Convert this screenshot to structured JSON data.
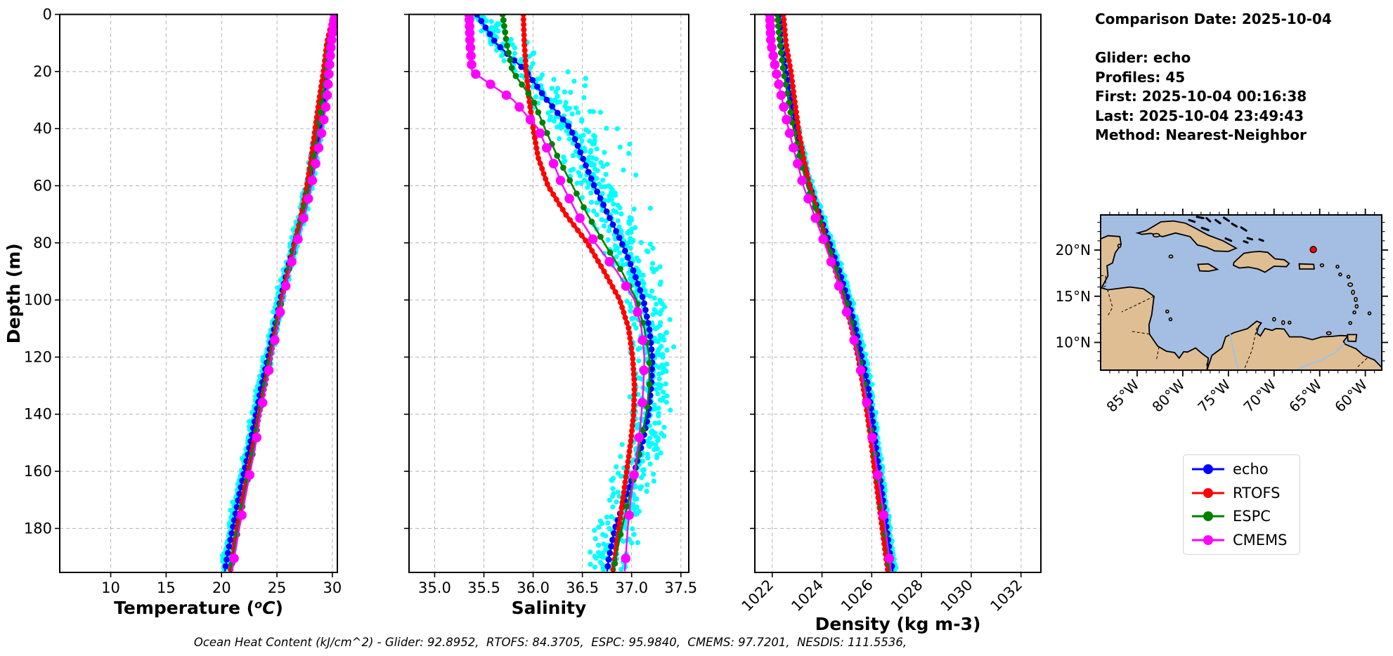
{
  "info_panel": {
    "lines": [
      "Comparison Date: 2025-10-04",
      "",
      "Glider: echo",
      "Profiles: 45",
      "First: 2025-10-04 00:16:38",
      "Last: 2025-10-04 23:49:43",
      "Method: Nearest-Neighbor"
    ]
  },
  "legend": {
    "entries": [
      {
        "label": "echo",
        "color": "#0000FF"
      },
      {
        "label": "RTOFS",
        "color": "#FF0000"
      },
      {
        "label": "ESPC",
        "color": "#008000"
      },
      {
        "label": "CMEMS",
        "color": "#FF00FF"
      }
    ]
  },
  "caption": "Ocean Heat Content (kJ/cm^2) - Glider: 92.8952,  RTOFS: 84.3705,  ESPC: 95.9840,  CMEMS: 97.7201,  NESDIS: 111.5536,",
  "chart_data": [
    {
      "id": "temperature",
      "type": "line",
      "xlabel": "Temperature (°C)",
      "ylabel": "Depth (m)",
      "xlim": [
        5.4,
        30.45
      ],
      "ylim": [
        0,
        195.4
      ],
      "xticks": [
        10,
        15,
        20,
        25,
        30
      ],
      "xtick_labels": [
        "10",
        "15",
        "20",
        "25",
        "30"
      ],
      "rotate_xtick_labels": false,
      "grid": true,
      "show_depth_labels": true,
      "depth_ticks": [
        0,
        20,
        40,
        60,
        80,
        100,
        120,
        140,
        160,
        180
      ],
      "depths": [
        0,
        10,
        20,
        30,
        40,
        50,
        60,
        70,
        80,
        90,
        100,
        110,
        120,
        130,
        140,
        150,
        160,
        170,
        180,
        190,
        195
      ],
      "series": [
        {
          "name": "echo",
          "color": "#0000FF",
          "line_width": 2.4,
          "marker_radius": 4.4,
          "marker_step_m": 2.3,
          "marker_growth": 1.0,
          "values": [
            30.2,
            29.8,
            29.6,
            29.2,
            28.8,
            28.4,
            27.9,
            27.3,
            26.6,
            25.9,
            25.3,
            24.75,
            24.2,
            23.6,
            23.1,
            22.6,
            22.05,
            21.5,
            21.0,
            20.5,
            20.3
          ]
        },
        {
          "name": "RTOFS",
          "color": "#FF0000",
          "line_width": 5,
          "marker_radius": 4,
          "marker_step_m": 1.8,
          "marker_growth": 1.0,
          "values": [
            30.1,
            29.5,
            29.2,
            28.8,
            28.45,
            28.1,
            27.7,
            27.2,
            26.6,
            26.0,
            25.4,
            24.9,
            24.4,
            23.9,
            23.4,
            22.9,
            22.4,
            21.9,
            21.4,
            21.0,
            20.8
          ]
        },
        {
          "name": "ESPC",
          "color": "#008000",
          "line_width": 2.6,
          "marker_radius": 4.4,
          "marker_step_m": 2,
          "marker_growth": 1.045,
          "values": [
            30.1,
            29.7,
            29.5,
            29.1,
            28.75,
            28.35,
            27.9,
            27.35,
            26.7,
            26.05,
            25.45,
            24.9,
            24.4,
            23.9,
            23.4,
            23.0,
            22.5,
            22.0,
            21.5,
            21.05,
            20.85
          ]
        },
        {
          "name": "CMEMS",
          "color": "#FF00FF",
          "line_width": 2.4,
          "marker_radius": 6.8,
          "marker_step_m": 2,
          "marker_growth": 1.075,
          "values": [
            30.2,
            29.9,
            29.7,
            29.5,
            29.1,
            28.6,
            28.1,
            27.5,
            26.8,
            26.1,
            25.5,
            25.0,
            24.5,
            24.0,
            23.5,
            23.1,
            22.6,
            22.1,
            21.6,
            21.15,
            20.95
          ]
        }
      ],
      "scatter": {
        "name": "glider raw points",
        "color": "#00FFFF",
        "radius": 3.6,
        "step_m": 0.42,
        "spread": 0.5,
        "bias": -0.03,
        "tail": 0,
        "tail_center": 0,
        "tail_width": 1,
        "tighten_m": 45,
        "seed": 101
      }
    },
    {
      "id": "salinity",
      "type": "line",
      "xlabel": "Salinity",
      "ylabel": "",
      "xlim": [
        34.74,
        37.58
      ],
      "ylim": [
        0,
        195.4
      ],
      "xticks": [
        35.0,
        35.5,
        36.0,
        36.5,
        37.0,
        37.5
      ],
      "xtick_labels": [
        "35.0",
        "35.5",
        "36.0",
        "36.5",
        "37.0",
        "37.5"
      ],
      "rotate_xtick_labels": false,
      "grid": true,
      "show_depth_labels": false,
      "depth_ticks": [
        0,
        20,
        40,
        60,
        80,
        100,
        120,
        140,
        160,
        180
      ],
      "depths": [
        0,
        10,
        20,
        30,
        40,
        50,
        60,
        70,
        80,
        90,
        100,
        110,
        120,
        130,
        140,
        150,
        160,
        170,
        180,
        190,
        195
      ],
      "series": [
        {
          "name": "echo",
          "color": "#0000FF",
          "line_width": 2.4,
          "marker_radius": 4.4,
          "marker_step_m": 2.3,
          "marker_growth": 1.0,
          "values": [
            35.43,
            35.62,
            35.93,
            36.14,
            36.38,
            36.5,
            36.62,
            36.76,
            36.9,
            37.02,
            37.12,
            37.18,
            37.21,
            37.2,
            37.17,
            37.11,
            37.03,
            36.93,
            36.83,
            36.77,
            36.75
          ]
        },
        {
          "name": "RTOFS",
          "color": "#FF0000",
          "line_width": 5,
          "marker_radius": 4,
          "marker_step_m": 1.8,
          "marker_growth": 1.0,
          "values": [
            35.9,
            35.91,
            35.93,
            35.96,
            36.0,
            36.05,
            36.15,
            36.33,
            36.55,
            36.72,
            36.88,
            36.97,
            37.01,
            37.03,
            37.02,
            36.99,
            36.95,
            36.91,
            36.87,
            36.83,
            36.81
          ]
        },
        {
          "name": "ESPC",
          "color": "#008000",
          "line_width": 2.6,
          "marker_radius": 4.4,
          "marker_step_m": 2,
          "marker_growth": 1.045,
          "values": [
            35.69,
            35.73,
            35.79,
            36.0,
            36.12,
            36.25,
            36.4,
            36.55,
            36.72,
            36.9,
            37.05,
            37.13,
            37.18,
            37.18,
            37.15,
            37.09,
            37.04,
            36.97,
            36.9,
            36.84,
            36.82
          ]
        },
        {
          "name": "CMEMS",
          "color": "#FF00FF",
          "line_width": 2.4,
          "marker_radius": 6.8,
          "marker_step_m": 2,
          "marker_growth": 1.075,
          "values": [
            35.35,
            35.36,
            35.38,
            35.8,
            36.05,
            36.18,
            36.3,
            36.45,
            36.63,
            36.85,
            37.03,
            37.1,
            37.13,
            37.12,
            37.1,
            37.07,
            37.03,
            36.99,
            36.96,
            36.94,
            36.93
          ]
        }
      ],
      "scatter": {
        "name": "glider raw points",
        "color": "#00FFFF",
        "radius": 3.6,
        "step_m": 0.5,
        "spread": 0.26,
        "bias": 0.02,
        "tail": 0.55,
        "tail_center": 40,
        "tail_width": 38,
        "tighten_m": 35,
        "seed": 202
      }
    },
    {
      "id": "density",
      "type": "line",
      "xlabel": "Density (kg m-3)",
      "ylabel": "",
      "xlim": [
        1021.3,
        1032.8
      ],
      "ylim": [
        0,
        195.4
      ],
      "xticks": [
        1022,
        1024,
        1026,
        1028,
        1030,
        1032
      ],
      "xtick_labels": [
        "1022",
        "1024",
        "1026",
        "1028",
        "1030",
        "1032"
      ],
      "rotate_xtick_labels": true,
      "grid": true,
      "show_depth_labels": false,
      "depth_ticks": [
        0,
        20,
        40,
        60,
        80,
        100,
        120,
        140,
        160,
        180
      ],
      "depths": [
        0,
        10,
        20,
        30,
        40,
        50,
        60,
        70,
        80,
        90,
        100,
        110,
        120,
        130,
        140,
        150,
        160,
        170,
        180,
        190,
        195
      ],
      "series": [
        {
          "name": "echo",
          "color": "#0000FF",
          "line_width": 2.4,
          "marker_radius": 4.4,
          "marker_step_m": 2.3,
          "marker_growth": 1.0,
          "values": [
            1022.3,
            1022.35,
            1022.55,
            1022.75,
            1022.95,
            1023.2,
            1023.5,
            1023.9,
            1024.3,
            1024.7,
            1025.05,
            1025.35,
            1025.6,
            1025.85,
            1026.0,
            1026.15,
            1026.3,
            1026.45,
            1026.6,
            1026.75,
            1026.85
          ]
        },
        {
          "name": "RTOFS",
          "color": "#FF0000",
          "line_width": 5,
          "marker_radius": 4,
          "marker_step_m": 1.8,
          "marker_growth": 1.0,
          "values": [
            1022.45,
            1022.55,
            1022.75,
            1022.9,
            1023.05,
            1023.25,
            1023.5,
            1023.85,
            1024.2,
            1024.55,
            1024.9,
            1025.2,
            1025.45,
            1025.65,
            1025.82,
            1025.98,
            1026.12,
            1026.27,
            1026.42,
            1026.57,
            1026.65
          ]
        },
        {
          "name": "ESPC",
          "color": "#008000",
          "line_width": 2.6,
          "marker_radius": 4.4,
          "marker_step_m": 2,
          "marker_growth": 1.045,
          "values": [
            1022.2,
            1022.3,
            1022.45,
            1022.65,
            1022.85,
            1023.1,
            1023.4,
            1023.8,
            1024.2,
            1024.6,
            1024.95,
            1025.25,
            1025.5,
            1025.73,
            1025.9,
            1026.05,
            1026.22,
            1026.38,
            1026.52,
            1026.66,
            1026.72
          ]
        },
        {
          "name": "CMEMS",
          "color": "#FF00FF",
          "line_width": 2.4,
          "marker_radius": 6.8,
          "marker_step_m": 2,
          "marker_growth": 1.075,
          "values": [
            1021.9,
            1021.95,
            1022.15,
            1022.4,
            1022.65,
            1022.95,
            1023.25,
            1023.68,
            1024.1,
            1024.5,
            1024.85,
            1025.18,
            1025.45,
            1025.68,
            1025.88,
            1026.05,
            1026.22,
            1026.4,
            1026.55,
            1026.7,
            1026.78
          ]
        }
      ],
      "scatter": {
        "name": "glider raw points",
        "color": "#00FFFF",
        "radius": 3.4,
        "step_m": 0.45,
        "spread": 0.15,
        "bias": 0.05,
        "tail": 0,
        "tail_center": 0,
        "tail_width": 1,
        "tighten_m": 60,
        "seed": 303
      }
    }
  ],
  "map": {
    "extent": {
      "lon": [
        -89,
        -58.2
      ],
      "lat": [
        7,
        23.8
      ]
    },
    "lon_ticks": [
      -85,
      -80,
      -75,
      -70,
      -65,
      -60
    ],
    "lon_tick_labels": [
      "85°W",
      "80°W",
      "75°W",
      "70°W",
      "65°W",
      "60°W"
    ],
    "lat_ticks": [
      20,
      15,
      10
    ],
    "lat_tick_labels": [
      "20°N",
      "15°N",
      "10°N"
    ],
    "ocean_color": "#A4BEE3",
    "land_color": "#DFBE93",
    "coast_color": "#000000",
    "marker": {
      "lon": -65.7,
      "lat": 20.05,
      "color": "#FF0000"
    }
  }
}
